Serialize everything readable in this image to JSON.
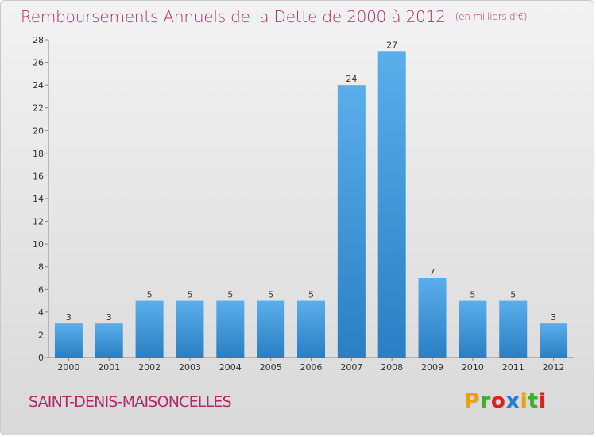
{
  "title": {
    "main": "Remboursements Annuels de la Dette de 2000 à 2012",
    "unit": "(en milliers d'€)"
  },
  "commune": "SAINT-DENIS-MAISONCELLES",
  "logo": {
    "letters": [
      "P",
      "r",
      "o",
      "x",
      "i",
      "t",
      "i"
    ],
    "colors": [
      "#f0a000",
      "#3fae2a",
      "#e01e1e",
      "#1f7fd0",
      "#f0a000",
      "#3fae2a",
      "#e01e1e"
    ]
  },
  "colors": {
    "bar_top": "#5aaeea",
    "bar_bottom": "#2a7fc4",
    "title": "#b02a68",
    "grid": "#cccccc"
  },
  "chart_data": {
    "type": "bar",
    "categories": [
      "2000",
      "2001",
      "2002",
      "2003",
      "2004",
      "2005",
      "2006",
      "2007",
      "2008",
      "2009",
      "2010",
      "2011",
      "2012"
    ],
    "values": [
      3,
      3,
      5,
      5,
      5,
      5,
      5,
      24,
      27,
      7,
      5,
      5,
      3
    ],
    "yticks": [
      0,
      2,
      4,
      6,
      8,
      10,
      12,
      14,
      16,
      18,
      20,
      22,
      24,
      26,
      28
    ],
    "ylim": [
      0,
      28
    ],
    "grid": false,
    "data_labels": true
  }
}
